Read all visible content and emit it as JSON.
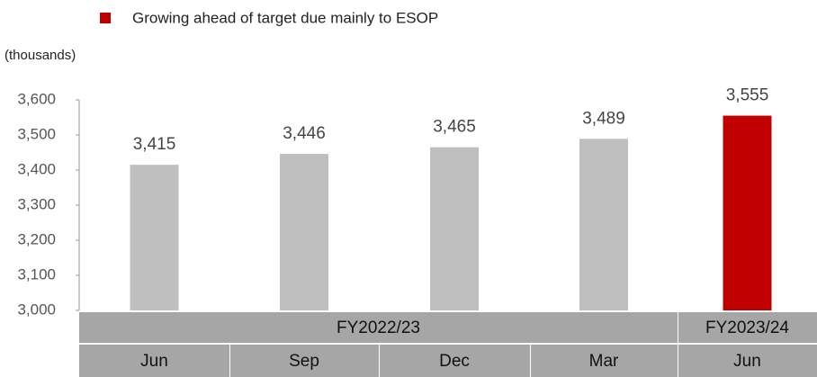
{
  "chart_data": {
    "type": "bar",
    "legend": {
      "label": "Growing ahead of target due mainly to ESOP",
      "color": "#c00000"
    },
    "unit_label": "(thousands)",
    "categories": [
      "Jun",
      "Sep",
      "Dec",
      "Mar",
      "Jun"
    ],
    "fiscal_years": [
      "FY2022/23",
      "FY2022/23",
      "FY2022/23",
      "FY2022/23",
      "FY2023/24"
    ],
    "values": [
      3415,
      3446,
      3465,
      3489,
      3555
    ],
    "value_labels": [
      "3,415",
      "3,446",
      "3,465",
      "3,489",
      "3,555"
    ],
    "colors": [
      "#bfbfbf",
      "#bfbfbf",
      "#bfbfbf",
      "#bfbfbf",
      "#c00000"
    ],
    "ylim": [
      3000,
      3600
    ],
    "yticks": [
      {
        "value": 3000,
        "label": "3,000"
      },
      {
        "value": 3100,
        "label": "3,100"
      },
      {
        "value": 3200,
        "label": "3,200"
      },
      {
        "value": 3300,
        "label": "3,300"
      },
      {
        "value": 3400,
        "label": "3,400"
      },
      {
        "value": 3500,
        "label": "3,500"
      },
      {
        "value": 3600,
        "label": "3,600"
      }
    ]
  }
}
